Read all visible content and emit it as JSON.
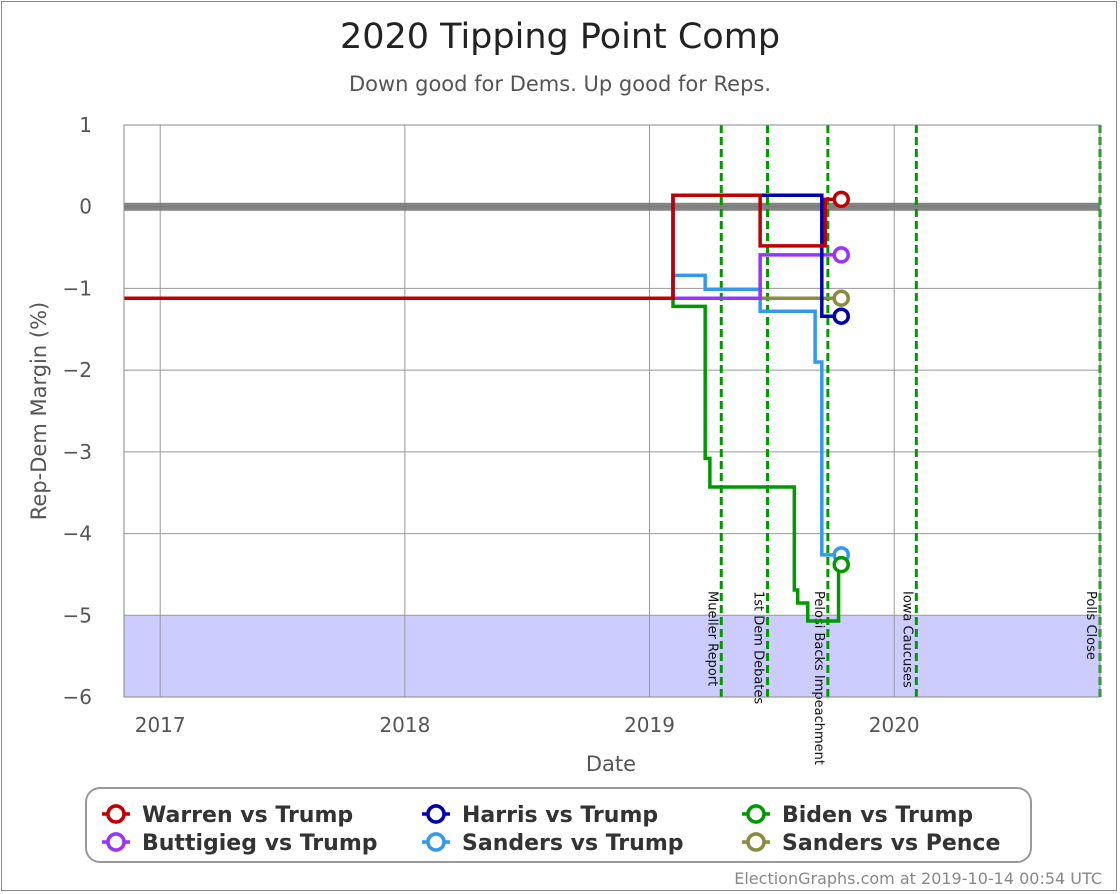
{
  "chart_data": {
    "type": "line",
    "title": "2020 Tipping Point Comp",
    "subtitle": "Down good for Dems. Up good for Reps.",
    "xlabel": "Date",
    "ylabel": "Rep-Dem Margin (%)",
    "xlim": [
      "2016-11-08",
      "2020-11-03"
    ],
    "ylim": [
      -6,
      1
    ],
    "x_ticks": [
      {
        "label": "2017",
        "date": "2017-01-01"
      },
      {
        "label": "2018",
        "date": "2018-01-01"
      },
      {
        "label": "2019",
        "date": "2019-01-01"
      },
      {
        "label": "2020",
        "date": "2020-01-01"
      }
    ],
    "y_ticks": [
      1,
      0,
      -1,
      -2,
      -3,
      -4,
      -5,
      -6
    ],
    "y_tick_labels": [
      "1",
      "0",
      "−1",
      "−2",
      "−3",
      "−4",
      "−5",
      "−6"
    ],
    "reference_line": 0,
    "shaded_band": [
      -6,
      -5
    ],
    "grid": true,
    "legend_position": "bottom",
    "events": [
      {
        "label": "Mueller Report",
        "date": "2019-04-18"
      },
      {
        "label": "1st Dem Debates",
        "date": "2019-06-26"
      },
      {
        "label": "Pelosi Backs Impeachment",
        "date": "2019-09-24"
      },
      {
        "label": "Iowa Caucuses",
        "date": "2020-02-03"
      },
      {
        "label": "Polls Close",
        "date": "2020-11-03"
      }
    ],
    "series": [
      {
        "name": "Warren vs Trump",
        "color": "#c00000",
        "steps": [
          [
            "2016-11-08",
            -1.12
          ],
          [
            "2019-02-05",
            0.14
          ],
          [
            "2019-06-15",
            -0.48
          ],
          [
            "2019-09-20",
            0.09
          ],
          [
            "2019-10-14",
            0.09
          ]
        ]
      },
      {
        "name": "Harris vs Trump",
        "color": "#0000b0",
        "steps": [
          [
            "2016-11-08",
            -1.12
          ],
          [
            "2019-02-05",
            0.14
          ],
          [
            "2019-06-15",
            0.14
          ],
          [
            "2019-09-15",
            -1.34
          ],
          [
            "2019-10-14",
            -1.34
          ]
        ]
      },
      {
        "name": "Biden vs Trump",
        "color": "#009900",
        "steps": [
          [
            "2016-11-08",
            -1.12
          ],
          [
            "2019-02-05",
            -1.22
          ],
          [
            "2019-03-25",
            -3.08
          ],
          [
            "2019-04-01",
            -3.43
          ],
          [
            "2019-08-05",
            -4.69
          ],
          [
            "2019-08-10",
            -4.85
          ],
          [
            "2019-08-25",
            -5.07
          ],
          [
            "2019-10-10",
            -4.38
          ],
          [
            "2019-10-14",
            -4.38
          ]
        ]
      },
      {
        "name": "Buttigieg vs Trump",
        "color": "#9933ff",
        "steps": [
          [
            "2016-11-08",
            -1.12
          ],
          [
            "2019-06-15",
            -0.59
          ],
          [
            "2019-10-14",
            -0.59
          ]
        ]
      },
      {
        "name": "Sanders vs Trump",
        "color": "#3399ee",
        "steps": [
          [
            "2016-11-08",
            -1.12
          ],
          [
            "2019-02-05",
            -0.84
          ],
          [
            "2019-03-25",
            -1.01
          ],
          [
            "2019-06-15",
            -1.28
          ],
          [
            "2019-09-05",
            -1.9
          ],
          [
            "2019-09-15",
            -4.26
          ],
          [
            "2019-10-14",
            -4.26
          ]
        ]
      },
      {
        "name": "Sanders vs Pence",
        "color": "#8b8b40",
        "steps": [
          [
            "2016-11-08",
            -1.12
          ],
          [
            "2019-10-14",
            -1.12
          ]
        ]
      }
    ]
  },
  "credit": "ElectionGraphs.com at 2019-10-14 00:54 UTC"
}
